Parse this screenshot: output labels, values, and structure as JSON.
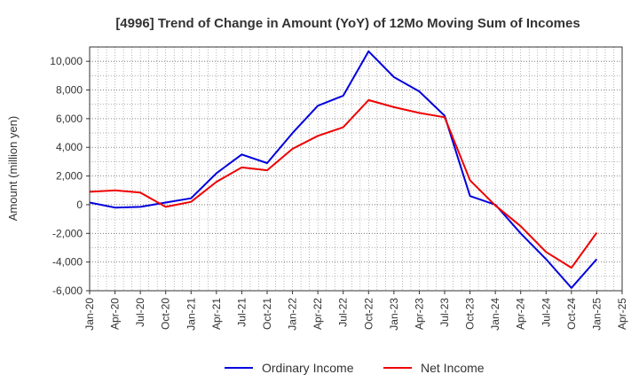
{
  "chart_data": {
    "type": "line",
    "title": "[4996]  Trend of Change in Amount (YoY) of 12Mo Moving Sum of Incomes",
    "xlabel": "",
    "ylabel": "Amount (million yen)",
    "ylim": [
      -6000,
      11000
    ],
    "yticks": [
      -6000,
      -4000,
      -2000,
      0,
      2000,
      4000,
      6000,
      8000,
      10000
    ],
    "ytick_labels": [
      "-6,000",
      "-4,000",
      "-2,000",
      "0",
      "2,000",
      "4,000",
      "6,000",
      "8,000",
      "10,000"
    ],
    "categories": [
      "Jan-20",
      "Apr-20",
      "Jul-20",
      "Oct-20",
      "Jan-21",
      "Apr-21",
      "Jul-21",
      "Oct-21",
      "Jan-22",
      "Apr-22",
      "Jul-22",
      "Oct-22",
      "Jan-23",
      "Apr-23",
      "Jul-23",
      "Oct-23",
      "Jan-24",
      "Apr-24",
      "Jul-24",
      "Oct-24",
      "Jan-25",
      "Apr-25"
    ],
    "grid": true,
    "legend_position": "bottom-center",
    "series": [
      {
        "name": "Ordinary Income",
        "color": "#0000dd",
        "values": [
          150,
          -200,
          -150,
          150,
          450,
          2200,
          3500,
          2900,
          5000,
          6900,
          7600,
          10700,
          8900,
          7900,
          6200,
          600,
          0,
          -2000,
          -3800,
          -5800,
          -3800,
          null
        ]
      },
      {
        "name": "Net Income",
        "color": "#ee0000",
        "values": [
          900,
          1000,
          850,
          -150,
          200,
          1600,
          2600,
          2400,
          3900,
          4800,
          5400,
          7300,
          6800,
          6400,
          6100,
          1700,
          -50,
          -1500,
          -3300,
          -4400,
          -1950,
          null
        ]
      }
    ]
  }
}
